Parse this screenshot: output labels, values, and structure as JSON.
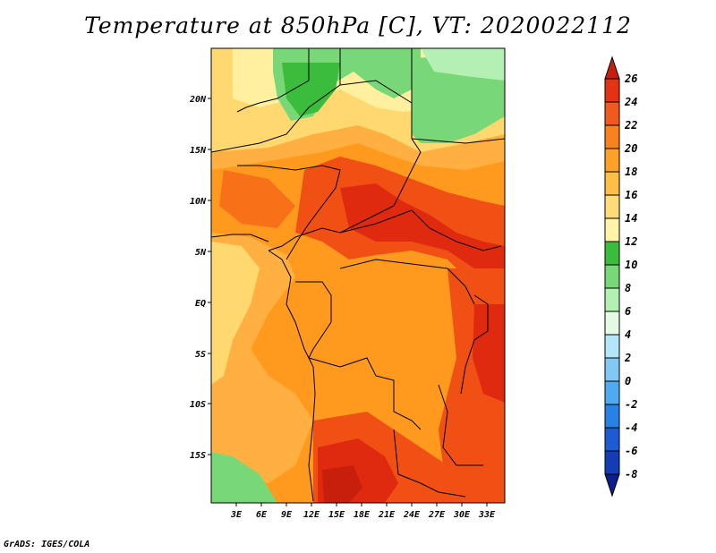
{
  "title": "Temperature at 850hPa [C], VT: 2020022112",
  "credit": "GrADS: IGES/COLA",
  "map": {
    "region": "Central Africa",
    "lon_labels": [
      "3E",
      "6E",
      "9E",
      "12E",
      "15E",
      "18E",
      "21E",
      "24E",
      "27E",
      "30E",
      "33E"
    ],
    "lat_labels": [
      "20N",
      "15N",
      "10N",
      "5N",
      "EQ",
      "5S",
      "10S",
      "15S"
    ],
    "field_colors": {
      "green_dark": "#3cbc3c",
      "green_mid": "#78d878",
      "green_light": "#b4f0b4",
      "yellow_light": "#fff0a0",
      "yellow": "#ffd870",
      "orange_light": "#ffb040",
      "orange": "#ff9a1e",
      "orange_dark": "#f87018",
      "red_orange": "#f05014",
      "red": "#e02a10",
      "red_dark": "#c81e0c"
    }
  },
  "colorbar": {
    "labels": [
      "26",
      "24",
      "22",
      "20",
      "18",
      "16",
      "14",
      "12",
      "10",
      "8",
      "6",
      "4",
      "2",
      "0",
      "-2",
      "-4",
      "-6",
      "-8"
    ],
    "colors": [
      "#c81e0c",
      "#e63214",
      "#f05a1e",
      "#f8821e",
      "#ffa028",
      "#ffbe46",
      "#ffdc78",
      "#fff4aa",
      "#3cbc3c",
      "#78d878",
      "#b4f0b4",
      "#e4fae4",
      "#b4e6fa",
      "#82c8f5",
      "#50aaf0",
      "#2882e6",
      "#1e5ad2",
      "#143cb4",
      "#0a1e8c"
    ]
  }
}
